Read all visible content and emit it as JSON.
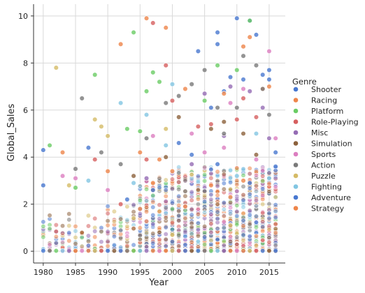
{
  "chart_data": {
    "type": "scatter",
    "title": "",
    "xlabel": "Year",
    "ylabel": "Global_Sales",
    "xlim": [
      1978.5,
      2017.5
    ],
    "ylim": [
      -0.5,
      10.5
    ],
    "xticks": [
      1980,
      1985,
      1990,
      1995,
      2000,
      2005,
      2010,
      2015
    ],
    "yticks": [
      0,
      2,
      4,
      6,
      8,
      10
    ],
    "grid": true,
    "legend": {
      "title": "Genre",
      "placement": "right"
    },
    "series": [
      {
        "name": "Shooter",
        "color": "#4878d0",
        "points": [
          [
            1980,
            4.3
          ],
          [
            1980,
            2.8
          ],
          [
            1987,
            4.4
          ],
          [
            2004,
            8.5
          ],
          [
            2006,
            6.1
          ],
          [
            2007,
            9.3
          ],
          [
            2007,
            8.8
          ],
          [
            2008,
            6.8
          ],
          [
            2009,
            7.4
          ],
          [
            2010,
            9.9
          ],
          [
            2011,
            7.3
          ],
          [
            2012,
            9.8
          ],
          [
            2013,
            9.2
          ],
          [
            2014,
            7.5
          ],
          [
            2015,
            7.7
          ],
          [
            2015,
            7.3
          ],
          [
            2016,
            4.2
          ]
        ]
      },
      {
        "name": "Racing",
        "color": "#ee854a",
        "points": [
          [
            1983,
            4.2
          ],
          [
            1992,
            8.8
          ],
          [
            1996,
            9.9
          ],
          [
            1999,
            9.5
          ],
          [
            2002,
            6.9
          ],
          [
            2008,
            6.7
          ],
          [
            2011,
            8.7
          ],
          [
            2012,
            9.1
          ],
          [
            2014,
            6.9
          ],
          [
            2015,
            7.0
          ],
          [
            1990,
            3.4
          ],
          [
            1995,
            4.2
          ],
          [
            1998,
            3.9
          ]
        ]
      },
      {
        "name": "Platform",
        "color": "#6acc64",
        "points": [
          [
            1981,
            4.5
          ],
          [
            1988,
            7.5
          ],
          [
            1994,
            9.3
          ],
          [
            1996,
            6.8
          ],
          [
            1997,
            7.6
          ],
          [
            1998,
            7.2
          ],
          [
            1993,
            5.2
          ],
          [
            1995,
            5.1
          ],
          [
            2005,
            6.4
          ],
          [
            2007,
            7.9
          ],
          [
            2010,
            7.7
          ],
          [
            2012,
            9.8
          ],
          [
            1985,
            2.7
          ]
        ]
      },
      {
        "name": "Role-Playing",
        "color": "#d65f5f",
        "points": [
          [
            1996,
            3.9
          ],
          [
            1997,
            9.7
          ],
          [
            1999,
            7.9
          ],
          [
            2000,
            6.4
          ],
          [
            2004,
            5.3
          ],
          [
            2006,
            5.4
          ],
          [
            2010,
            5.6
          ],
          [
            2011,
            6.5
          ],
          [
            2013,
            5.7
          ],
          [
            1992,
            2.0
          ],
          [
            1988,
            3.9
          ]
        ]
      },
      {
        "name": "Misc",
        "color": "#956cb4",
        "points": [
          [
            2005,
            6.7
          ],
          [
            2009,
            7.0
          ],
          [
            2012,
            6.8
          ],
          [
            2014,
            6.1
          ],
          [
            2008,
            4.9
          ],
          [
            2003,
            3.7
          ],
          [
            1996,
            3.1
          ],
          [
            2015,
            4.8
          ]
        ]
      },
      {
        "name": "Simulation",
        "color": "#8c613c",
        "points": [
          [
            2001,
            5.7
          ],
          [
            2006,
            5.2
          ],
          [
            2008,
            5.5
          ],
          [
            2011,
            5.0
          ],
          [
            1999,
            4.0
          ],
          [
            1994,
            3.2
          ],
          [
            2013,
            4.1
          ]
        ]
      },
      {
        "name": "Sports",
        "color": "#dc7ec0",
        "points": [
          [
            2009,
            6.3
          ],
          [
            2011,
            6.9
          ],
          [
            2015,
            8.5
          ],
          [
            2016,
            4.8
          ],
          [
            1997,
            4.9
          ],
          [
            2003,
            5.0
          ],
          [
            1985,
            3.1
          ],
          [
            1983,
            3.2
          ],
          [
            1990,
            2.6
          ],
          [
            2008,
            4.4
          ],
          [
            2013,
            3.9
          ],
          [
            2005,
            4.2
          ]
        ]
      },
      {
        "name": "Action",
        "color": "#797979",
        "points": [
          [
            1986,
            6.5
          ],
          [
            2005,
            7.7
          ],
          [
            2011,
            8.3
          ],
          [
            2013,
            7.9
          ],
          [
            2014,
            6.9
          ],
          [
            1999,
            6.3
          ],
          [
            2001,
            6.6
          ],
          [
            2003,
            7.1
          ],
          [
            1996,
            4.8
          ],
          [
            1992,
            3.7
          ],
          [
            1989,
            4.2
          ],
          [
            1985,
            3.5
          ],
          [
            2010,
            6.1
          ],
          [
            2008,
            5.0
          ],
          [
            2015,
            5.8
          ],
          [
            2007,
            6.1
          ]
        ]
      },
      {
        "name": "Puzzle",
        "color": "#d5bb67",
        "points": [
          [
            1982,
            7.8
          ],
          [
            1988,
            5.6
          ],
          [
            1990,
            4.9
          ],
          [
            1989,
            5.3
          ],
          [
            1999,
            5.2
          ],
          [
            1984,
            2.8
          ],
          [
            1994,
            1.4
          ],
          [
            2000,
            0.7
          ],
          [
            2009,
            1.1
          ]
        ]
      },
      {
        "name": "Fighting",
        "color": "#82c6e2",
        "points": [
          [
            1992,
            6.3
          ],
          [
            1996,
            5.8
          ],
          [
            1987,
            3.0
          ],
          [
            2000,
            7.1
          ],
          [
            2013,
            5.0
          ],
          [
            2015,
            3.1
          ],
          [
            1999,
            4.5
          ],
          [
            1994,
            2.9
          ],
          [
            2010,
            3.2
          ]
        ]
      },
      {
        "name": "Adventure",
        "color": "#4878d0",
        "points": [
          [
            2001,
            4.6
          ],
          [
            2003,
            4.1
          ],
          [
            1997,
            2.6
          ],
          [
            2007,
            3.7
          ],
          [
            2012,
            2.9
          ],
          [
            2016,
            3.6
          ],
          [
            1993,
            2.2
          ]
        ]
      },
      {
        "name": "Strategy",
        "color": "#ee854a",
        "points": [
          [
            1997,
            2.9
          ],
          [
            2000,
            3.4
          ],
          [
            2002,
            1.9
          ],
          [
            2006,
            2.8
          ],
          [
            2011,
            3.0
          ],
          [
            1995,
            1.8
          ],
          [
            2009,
            2.3
          ]
        ]
      }
    ]
  }
}
